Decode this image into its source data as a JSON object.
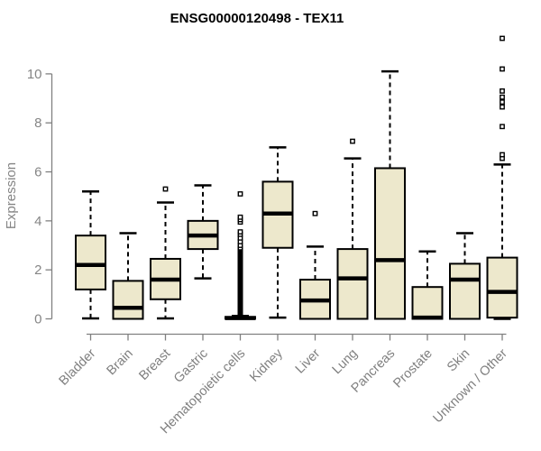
{
  "page": {
    "title": "ENSG00000120498 - TEX11"
  },
  "chart_data": {
    "type": "boxplot",
    "title": "ENSG00000120498 - TEX11",
    "xlabel": "",
    "ylabel": "Expression",
    "ylim": [
      0,
      10
    ],
    "yticks": [
      0,
      2,
      4,
      6,
      8,
      10
    ],
    "grid": false,
    "legend": null,
    "colors": {
      "box_fill": "#EDE8CC",
      "box_stroke": "#000000",
      "median": "#000000",
      "axis": "#808080",
      "tick_labels": "#858585",
      "title": "#000000",
      "background": "#FFFFFF"
    },
    "categories": [
      "Bladder",
      "Brain",
      "Breast",
      "Gastric",
      "Hematopoietic cells",
      "Kidney",
      "Liver",
      "Lung",
      "Pancreas",
      "Prostate",
      "Skin",
      "Unknown / Other"
    ],
    "series": [
      {
        "name": "Bladder",
        "whisker_low": 0.02,
        "q1": 1.2,
        "median": 2.2,
        "q3": 3.4,
        "whisker_high": 5.2,
        "outliers": []
      },
      {
        "name": "Brain",
        "whisker_low": 0,
        "q1": 0,
        "median": 0.45,
        "q3": 1.55,
        "whisker_high": 3.5,
        "outliers": []
      },
      {
        "name": "Breast",
        "whisker_low": 0.02,
        "q1": 0.8,
        "median": 1.6,
        "q3": 2.45,
        "whisker_high": 4.75,
        "outliers": [
          5.3
        ]
      },
      {
        "name": "Gastric",
        "whisker_low": 1.65,
        "q1": 2.85,
        "median": 3.4,
        "q3": 4.0,
        "whisker_high": 5.45,
        "outliers": []
      },
      {
        "name": "Hematopoietic cells",
        "whisker_low": 0,
        "q1": 0,
        "median": 0.03,
        "q3": 0.08,
        "whisker_high": 0.12,
        "outliers": [
          2.9,
          3.0,
          3.15,
          3.3,
          3.45,
          3.55,
          3.95,
          4.05,
          4.15,
          5.1
        ],
        "outlier_band": [
          0.15,
          2.88
        ]
      },
      {
        "name": "Kidney",
        "whisker_low": 0.05,
        "q1": 2.9,
        "median": 4.3,
        "q3": 5.6,
        "whisker_high": 7.0,
        "outliers": []
      },
      {
        "name": "Liver",
        "whisker_low": 0,
        "q1": 0,
        "median": 0.75,
        "q3": 1.6,
        "whisker_high": 2.95,
        "outliers": [
          4.3
        ]
      },
      {
        "name": "Lung",
        "whisker_low": 0,
        "q1": 0,
        "median": 1.65,
        "q3": 2.85,
        "whisker_high": 6.55,
        "outliers": [
          7.25
        ]
      },
      {
        "name": "Pancreas",
        "whisker_low": 0,
        "q1": 0,
        "median": 2.4,
        "q3": 6.15,
        "whisker_high": 10.1,
        "outliers": []
      },
      {
        "name": "Prostate",
        "whisker_low": 0,
        "q1": 0,
        "median": 0.05,
        "q3": 1.3,
        "whisker_high": 2.75,
        "outliers": []
      },
      {
        "name": "Skin",
        "whisker_low": 0,
        "q1": 0,
        "median": 1.6,
        "q3": 2.25,
        "whisker_high": 3.5,
        "outliers": []
      },
      {
        "name": "Unknown / Other",
        "whisker_low": 0,
        "q1": 0.05,
        "median": 1.1,
        "q3": 2.5,
        "whisker_high": 6.3,
        "outliers": [
          6.55,
          6.7,
          7.85,
          8.65,
          8.85,
          9.05,
          9.3,
          10.2,
          11.45
        ]
      }
    ]
  }
}
